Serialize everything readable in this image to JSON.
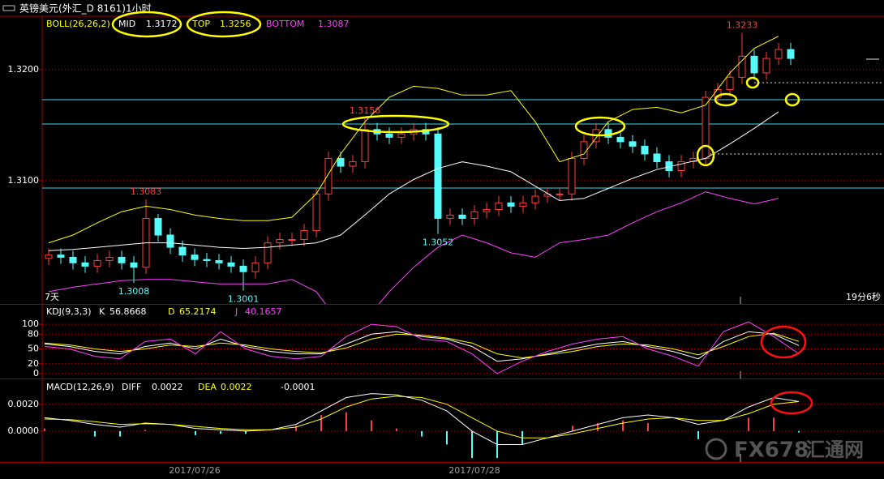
{
  "chart_data": [
    {
      "type": "candlestick",
      "title": "英镑美元(外汇_D 8161)1小时",
      "corner_left": "7天",
      "corner_right": "19分6秒",
      "categories": [
        null,
        null,
        null,
        null,
        null,
        null,
        null,
        null,
        null,
        null,
        null,
        null,
        "2017/07/26",
        null,
        null,
        null,
        null,
        null,
        null,
        null,
        null,
        null,
        null,
        null,
        null,
        null,
        null,
        null,
        null,
        null,
        null,
        null,
        null,
        null,
        null,
        "2017/07/28",
        null,
        null,
        null,
        null,
        null,
        null,
        null,
        null,
        null,
        null,
        null,
        null,
        null,
        null,
        null,
        null,
        null,
        null,
        null,
        null,
        null,
        null,
        null,
        null,
        null,
        null
      ],
      "open": [
        1.303,
        1.3033,
        1.3031,
        1.3026,
        1.3023,
        1.3028,
        1.3031,
        1.3026,
        1.3022,
        1.3066,
        1.3051,
        1.304,
        1.3033,
        1.3029,
        1.3028,
        1.3026,
        1.3023,
        1.3018,
        1.3026,
        1.3044,
        1.3047,
        1.3047,
        1.3055,
        1.3088,
        1.312,
        1.3113,
        1.3117,
        1.3146,
        1.3142,
        1.3139,
        1.3142,
        1.3146,
        1.3142,
        1.3066,
        1.3069,
        1.3066,
        1.3072,
        1.3074,
        1.308,
        1.3077,
        1.308,
        1.3086,
        1.3088,
        1.3088,
        1.312,
        1.3135,
        1.3146,
        1.3139,
        1.3135,
        1.3131,
        1.3124,
        1.3117,
        1.3109,
        1.3117,
        1.312,
        1.3175,
        1.3182,
        1.3193,
        1.3212,
        1.3197,
        1.321,
        1.3218
      ],
      "high": [
        1.3039,
        1.3039,
        1.3037,
        1.3032,
        1.3034,
        1.3037,
        1.3037,
        1.3032,
        1.3083,
        1.307,
        1.3057,
        1.3046,
        1.3039,
        1.3035,
        1.3034,
        1.3032,
        1.3029,
        1.3032,
        1.305,
        1.3053,
        1.3053,
        1.3061,
        1.3094,
        1.3126,
        1.3126,
        1.3123,
        1.3156,
        1.3152,
        1.3148,
        1.3148,
        1.3152,
        1.3152,
        1.3148,
        1.3075,
        1.3075,
        1.3078,
        1.308,
        1.3086,
        1.3086,
        1.3086,
        1.3092,
        1.3094,
        1.3094,
        1.3126,
        1.3141,
        1.3152,
        1.3152,
        1.3145,
        1.3141,
        1.3137,
        1.313,
        1.3123,
        1.3123,
        1.3126,
        1.3181,
        1.3188,
        1.3199,
        1.3233,
        1.3218,
        1.3216,
        1.3224,
        1.3224
      ],
      "low": [
        1.3024,
        1.3025,
        1.302,
        1.3017,
        1.3017,
        1.3022,
        1.302,
        1.3008,
        1.3016,
        1.3045,
        1.3034,
        1.3027,
        1.3023,
        1.3022,
        1.302,
        1.3017,
        1.3001,
        1.3012,
        1.302,
        1.3038,
        1.3041,
        1.3041,
        1.3049,
        1.3082,
        1.3107,
        1.3107,
        1.3111,
        1.3136,
        1.3133,
        1.3133,
        1.3136,
        1.3136,
        1.3052,
        1.306,
        1.306,
        1.306,
        1.3066,
        1.3068,
        1.3071,
        1.3071,
        1.3074,
        1.308,
        1.3082,
        1.3082,
        1.3114,
        1.3129,
        1.3133,
        1.3129,
        1.3125,
        1.3118,
        1.3111,
        1.3103,
        1.3103,
        1.3111,
        1.3114,
        1.3169,
        1.3176,
        1.3187,
        1.3191,
        1.3191,
        1.3204,
        1.3204
      ],
      "close": [
        1.3033,
        1.3031,
        1.3026,
        1.3023,
        1.3028,
        1.3031,
        1.3026,
        1.3022,
        1.3066,
        1.3051,
        1.304,
        1.3033,
        1.3029,
        1.3028,
        1.3026,
        1.3023,
        1.3018,
        1.3026,
        1.3044,
        1.3047,
        1.3047,
        1.3055,
        1.3088,
        1.312,
        1.3113,
        1.3117,
        1.3146,
        1.3142,
        1.3139,
        1.3142,
        1.3146,
        1.3142,
        1.3066,
        1.3069,
        1.3066,
        1.3072,
        1.3074,
        1.308,
        1.3077,
        1.308,
        1.3086,
        1.3088,
        1.3088,
        1.312,
        1.3135,
        1.3146,
        1.3139,
        1.3135,
        1.3131,
        1.3124,
        1.3117,
        1.3109,
        1.3117,
        1.312,
        1.3175,
        1.3182,
        1.3193,
        1.3212,
        1.3197,
        1.321,
        1.3218,
        1.321
      ],
      "up_color": "#ff3c3c",
      "down_color": "#54fcfc",
      "annotations": [
        1.3083,
        1.3008,
        1.3001,
        1.3156,
        1.3052,
        1.3233
      ],
      "ylim": [
        1.2989,
        1.3248
      ],
      "yticks": [
        {
          "value": 1.32,
          "label": "1.3200"
        },
        {
          "value": 1.31,
          "label": "1.3100"
        }
      ],
      "grid": true
    },
    {
      "type": "line",
      "label": "BOLL(26,26,2)",
      "ylim": [
        1.2989,
        1.3248
      ],
      "series": [
        {
          "name": "MID",
          "color": "#ffffff",
          "readout": 1.3172,
          "values": [
            1.3037,
            1.3038,
            1.304,
            1.3042,
            1.3044,
            1.3044,
            1.3042,
            1.304,
            1.3039,
            1.304,
            1.3042,
            1.3044,
            1.3051,
            1.3069,
            1.3088,
            1.3101,
            1.3111,
            1.3117,
            1.3113,
            1.3108,
            1.3095,
            1.3082,
            1.3084,
            1.3093,
            1.3102,
            1.311,
            1.3115,
            1.312,
            1.3133,
            1.3147,
            1.3162
          ]
        },
        {
          "name": "TOP",
          "color": "#ffff00",
          "readout": 1.3256,
          "values": [
            1.3044,
            1.3051,
            1.3062,
            1.3072,
            1.3077,
            1.3074,
            1.3069,
            1.3066,
            1.3064,
            1.3064,
            1.3067,
            1.3088,
            1.3124,
            1.3153,
            1.3175,
            1.3185,
            1.3183,
            1.3177,
            1.3177,
            1.3181,
            1.3153,
            1.3117,
            1.3124,
            1.3153,
            1.3164,
            1.3166,
            1.3161,
            1.3168,
            1.3197,
            1.3219,
            1.323
          ]
        },
        {
          "name": "BOTTOM",
          "color": "#ff40ff",
          "readout": 1.3087,
          "values": [
            1.3,
            1.3004,
            1.3007,
            1.301,
            1.3011,
            1.3011,
            1.3009,
            1.3007,
            1.3007,
            1.3007,
            1.3011,
            1.3,
            1.2971,
            1.2974,
            1.3,
            1.3022,
            1.304,
            1.3051,
            1.3044,
            1.3035,
            1.3031,
            1.3044,
            1.3047,
            1.3051,
            1.3062,
            1.3072,
            1.308,
            1.309,
            1.3084,
            1.3079,
            1.3084
          ]
        }
      ]
    },
    {
      "type": "line",
      "label": "KDJ(9,3,3)",
      "ylim": [
        -10,
        138
      ],
      "yticks": [
        0,
        20,
        50,
        80,
        100
      ],
      "grid": true,
      "series": [
        {
          "name": "K",
          "color": "#ffffff",
          "readout": 56.8668,
          "values": [
            60,
            55,
            45,
            40,
            55,
            62,
            50,
            70,
            55,
            45,
            40,
            40,
            60,
            80,
            85,
            75,
            70,
            55,
            25,
            30,
            40,
            50,
            60,
            65,
            55,
            45,
            30,
            65,
            85,
            80,
            56.8668
          ]
        },
        {
          "name": "D",
          "color": "#ffff00",
          "readout": 65.2174,
          "values": [
            62,
            58,
            50,
            45,
            50,
            58,
            55,
            62,
            58,
            50,
            45,
            42,
            52,
            70,
            80,
            78,
            72,
            62,
            40,
            32,
            38,
            45,
            55,
            60,
            58,
            50,
            38,
            55,
            75,
            82,
            65.2174
          ]
        },
        {
          "name": "J",
          "color": "#ff40ff",
          "readout": 40.1657,
          "values": [
            55,
            50,
            35,
            30,
            65,
            70,
            40,
            85,
            50,
            35,
            30,
            35,
            75,
            100,
            95,
            70,
            65,
            40,
            0,
            25,
            45,
            60,
            70,
            75,
            50,
            35,
            15,
            85,
            105,
            75,
            40.1657
          ]
        }
      ]
    },
    {
      "type": "macd",
      "label": "MACD(12,26,9)",
      "watermark": "FX678",
      "watermark_cn": "汇通网",
      "ylim": [
        -0.0023,
        0.0038
      ],
      "yticks": [
        {
          "value": 0.002,
          "label": "0.0020"
        },
        {
          "value": 0,
          "label": "0.0000"
        }
      ],
      "grid": true,
      "series": [
        {
          "name": "DIFF",
          "color": "#ffffff",
          "readout": 0.0022,
          "values": [
            0.001,
            0.0008,
            0.0005,
            0.0003,
            0.0006,
            0.0005,
            0.0002,
            0.0001,
            0.0,
            0.0001,
            0.0005,
            0.0015,
            0.0025,
            0.0028,
            0.0027,
            0.0023,
            0.0015,
            0.0,
            -0.001,
            -0.001,
            -0.0005,
            0.0,
            0.0005,
            0.001,
            0.0012,
            0.001,
            0.0005,
            0.0008,
            0.0018,
            0.0025,
            0.0022
          ]
        },
        {
          "name": "DEA",
          "color": "#ffff00",
          "readout": 0.0022,
          "values": [
            0.0009,
            0.00085,
            0.0007,
            0.0005,
            0.00055,
            0.0005,
            0.00035,
            0.0002,
            0.0001,
            0.0001,
            0.0003,
            0.0009,
            0.0018,
            0.0024,
            0.0026,
            0.0025,
            0.002,
            0.001,
            0.0,
            -0.0005,
            -0.0005,
            -0.0002,
            0.0002,
            0.0006,
            0.0009,
            0.001,
            0.0008,
            0.0008,
            0.0013,
            0.002,
            0.0022
          ]
        }
      ],
      "bars": {
        "up_color": "#ff3c3c",
        "down_color": "#54fcfc",
        "readout": -0.0001,
        "values": [
          0.0002,
          0,
          -0.0004,
          -0.0004,
          0.0001,
          0,
          -0.0003,
          -0.0002,
          -0.0002,
          0,
          0.0004,
          0.0012,
          0.0014,
          0.0008,
          0.0002,
          -0.0004,
          -0.001,
          -0.002,
          -0.002,
          -0.001,
          0,
          0.0004,
          0.0006,
          0.0008,
          0.0006,
          0,
          -0.0006,
          0,
          0.001,
          0.001,
          -0.0001
        ]
      }
    }
  ]
}
